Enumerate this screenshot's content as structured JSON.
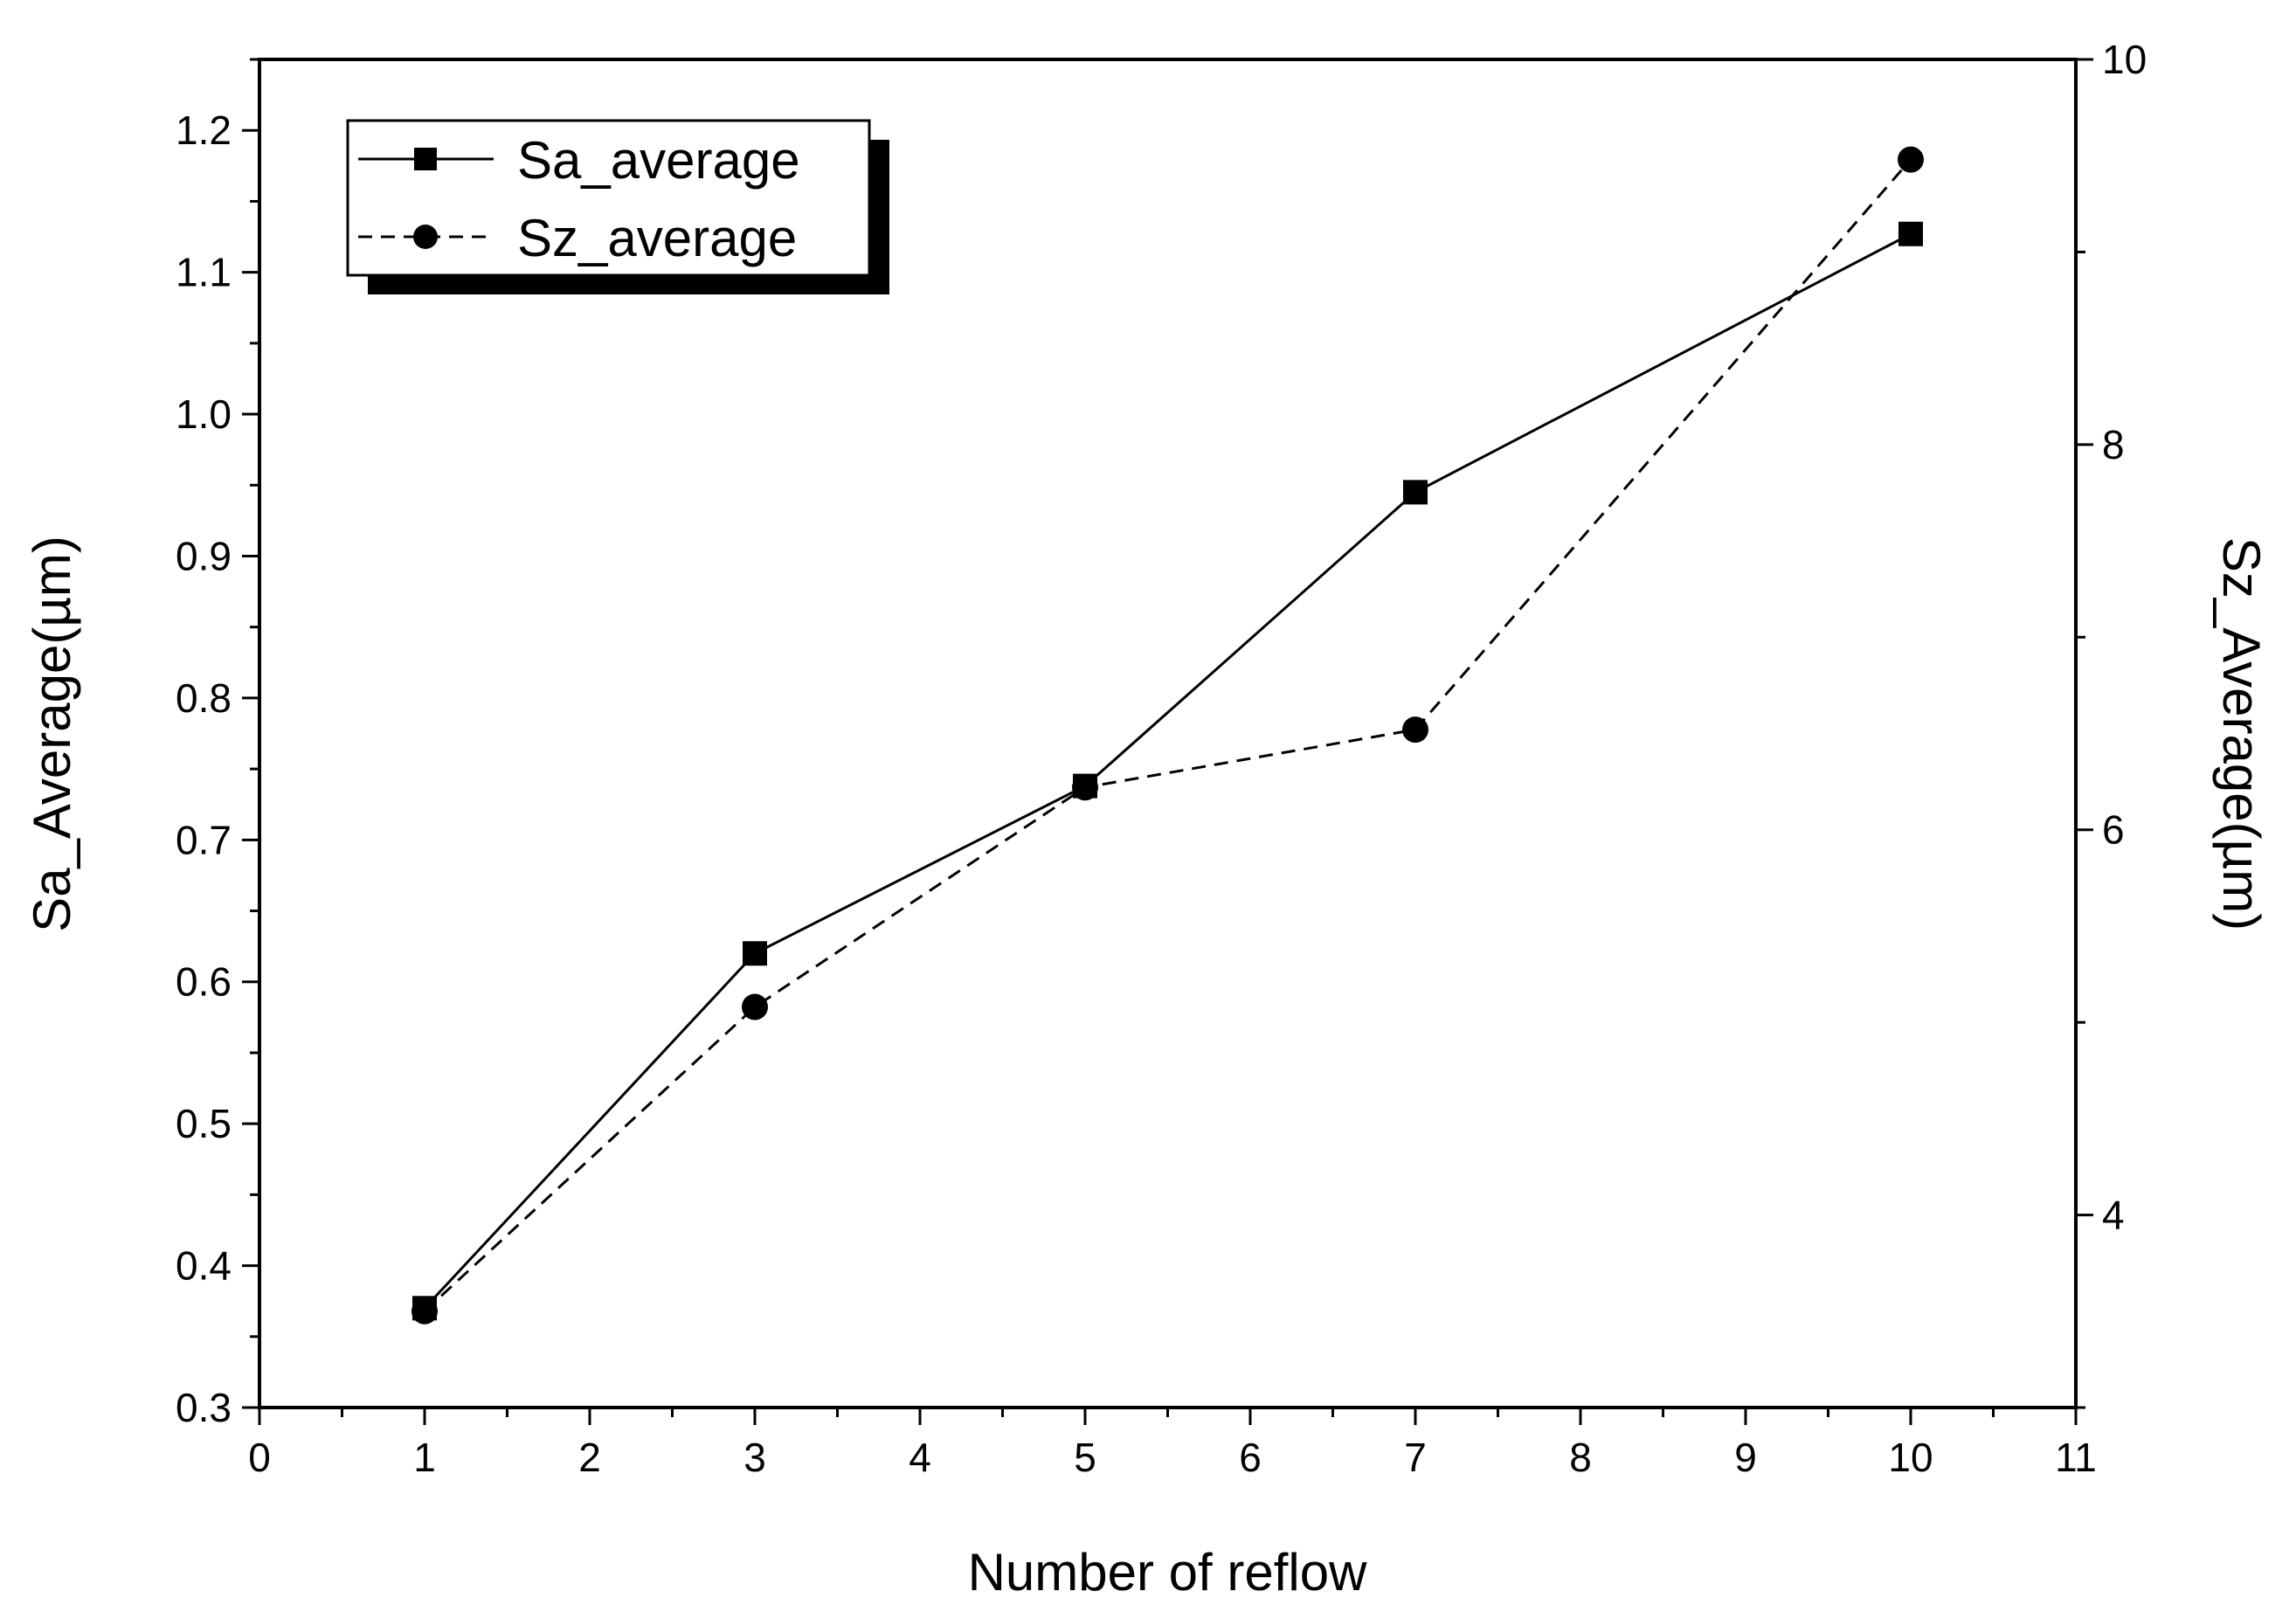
{
  "chart_data": {
    "type": "line",
    "x": [
      1,
      3,
      5,
      7,
      10
    ],
    "xlabel": "Number of reflow",
    "xlim": [
      0,
      11
    ],
    "xticks": [
      0,
      1,
      2,
      3,
      4,
      5,
      6,
      7,
      8,
      9,
      10,
      11
    ],
    "ylabel": "Sa_Average(µm)",
    "ylim": [
      0.3,
      1.25
    ],
    "yticks": [
      0.3,
      0.4,
      0.5,
      0.6,
      0.7,
      0.8,
      0.9,
      1.0,
      1.1,
      1.2
    ],
    "ytick_labels": [
      "0.3",
      "0.4",
      "0.5",
      "0.6",
      "0.7",
      "0.8",
      "0.9",
      "1.0",
      "1.1",
      "1.2"
    ],
    "y2label": "Sz_Average(µm)",
    "y2lim": [
      3,
      10
    ],
    "y2ticks": [
      4,
      6,
      8,
      10
    ],
    "y2tick_labels": [
      "4",
      "6",
      "8",
      "10"
    ],
    "grid": false,
    "legend_position": "top-left",
    "series": [
      {
        "name": "Sa_average",
        "axis": "left",
        "marker": "square",
        "line_style": "solid",
        "color": "#000000",
        "values": [
          0.37,
          0.62,
          0.738,
          0.945,
          1.127
        ]
      },
      {
        "name": "Sz_average",
        "axis": "right",
        "marker": "circle",
        "line_style": "dashed",
        "color": "#000000",
        "values": [
          3.5,
          5.08,
          6.22,
          6.52,
          9.48
        ]
      }
    ]
  }
}
